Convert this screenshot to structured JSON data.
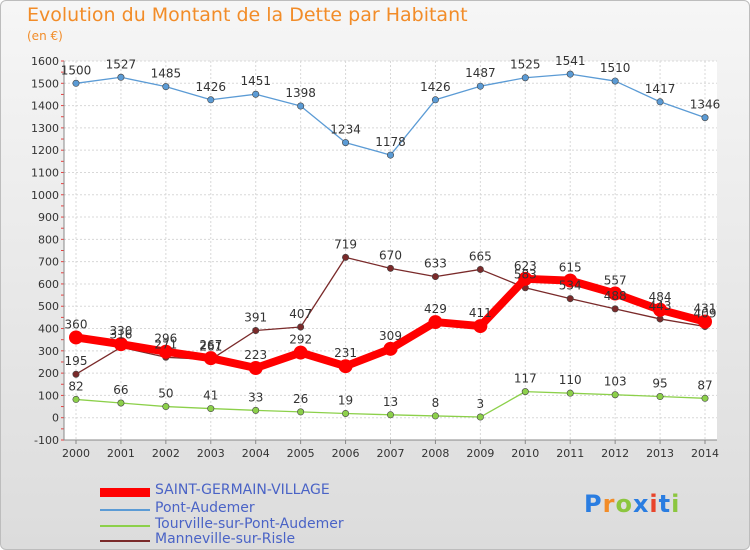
{
  "header": {
    "title": "Evolution du Montant de la Dette par Habitant",
    "unit": "(en €)"
  },
  "logo": {
    "text": "Proxiti",
    "colors": [
      "#2a7de1",
      "#f28c28",
      "#8cc63f",
      "#2a7de1",
      "#e8452c",
      "#2a7de1",
      "#8cc63f"
    ]
  },
  "chart_data": {
    "type": "line",
    "x": [
      "2000",
      "2001",
      "2002",
      "2003",
      "2004",
      "2005",
      "2006",
      "2007",
      "2008",
      "2009",
      "2010",
      "2011",
      "2012",
      "2013",
      "2014"
    ],
    "ylim": [
      -100,
      1600
    ],
    "yticks": [
      "-100",
      "0",
      "100",
      "200",
      "300",
      "400",
      "500",
      "600",
      "700",
      "800",
      "900",
      "1000",
      "1100",
      "1200",
      "1300",
      "1400",
      "1500",
      "1600"
    ],
    "grid": true,
    "legend_position": "bottom-left",
    "series": [
      {
        "name": "SAINT-GERMAIN-VILLAGE",
        "color": "#ff0000",
        "values": [
          360,
          330,
          296,
          267,
          223,
          292,
          231,
          309,
          429,
          411,
          623,
          615,
          557,
          484,
          431
        ],
        "labels": [
          "360",
          "330",
          "296",
          "267",
          "223",
          "292",
          "231",
          "309",
          "429",
          "411",
          "623",
          "615",
          "557",
          "484",
          "431"
        ]
      },
      {
        "name": "Pont-Audemer",
        "color": "#5b9bd5",
        "values": [
          1500,
          1527,
          1485,
          1426,
          1451,
          1398,
          1234,
          1178,
          1426,
          1487,
          1525,
          1541,
          1510,
          1417,
          1346
        ],
        "labels": [
          "1500",
          "1527",
          "1485",
          "1426",
          "1451",
          "1398",
          "1234",
          "1178",
          "1426",
          "1487",
          "1525",
          "1541",
          "1510",
          "1417",
          "1346"
        ]
      },
      {
        "name": "Tourville-sur-Pont-Audemer",
        "color": "#8cd04a",
        "values": [
          82,
          66,
          50,
          41,
          33,
          26,
          19,
          13,
          8,
          3,
          117,
          110,
          103,
          95,
          87
        ],
        "labels": [
          "82",
          "66",
          "50",
          "41",
          "33",
          "26",
          "19",
          "13",
          "8",
          "3",
          "117",
          "110",
          "103",
          "95",
          "87"
        ]
      },
      {
        "name": "Manneville-sur-Risle",
        "color": "#7a2a2a",
        "values": [
          195,
          316,
          271,
          261,
          391,
          407,
          719,
          670,
          633,
          665,
          583,
          534,
          488,
          443,
          409
        ],
        "labels": [
          "195",
          "316",
          "271",
          "261",
          "391",
          "407",
          "719",
          "670",
          "633",
          "665",
          "583",
          "534",
          "488",
          "443",
          "409"
        ]
      }
    ]
  }
}
